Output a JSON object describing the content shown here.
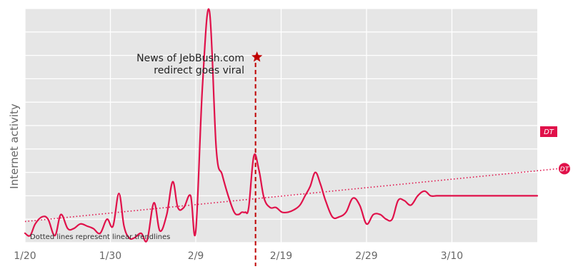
{
  "chart_data": {
    "type": "line",
    "ylabel": "Internet activity",
    "x_tick_labels": [
      "1/20",
      "1/30",
      "2/9",
      "2/19",
      "2/29",
      "3/10"
    ],
    "x_tick_days": [
      0,
      10,
      20,
      30,
      40,
      50
    ],
    "x_range_days": [
      0,
      60
    ],
    "y_range": [
      0,
      100
    ],
    "y_gridlines": [
      0,
      10,
      20,
      30,
      40,
      50,
      60,
      70,
      80,
      90,
      100
    ],
    "grid": true,
    "series": [
      {
        "name": "DT",
        "color": "#e0114a",
        "x_days": [
          0,
          0.6,
          1.2,
          2,
          2.7,
          3.5,
          4.2,
          5,
          5.7,
          6.5,
          7.3,
          8,
          8.8,
          9.6,
          10.3,
          11,
          11.6,
          12.2,
          12.8,
          13.6,
          14.3,
          15.1,
          15.8,
          16.6,
          17.3,
          17.9,
          18.6,
          19.4,
          20,
          20.8,
          21.6,
          22.4,
          23.1,
          23.8,
          24.5,
          25,
          25.4,
          25.8,
          26.2,
          26.8,
          27.4,
          28,
          28.7,
          29.4,
          30.1,
          30.8,
          31.5,
          32.2,
          32.8,
          33.4,
          34,
          34.6,
          35.2,
          36,
          36.8,
          37.6,
          38.4,
          39.2,
          40,
          40.8,
          41.6,
          42.3,
          43,
          43.7,
          44.4,
          45.2,
          46,
          46.8,
          47.5,
          48.2,
          48.9,
          49.6,
          50.3,
          51,
          51.7,
          52.4,
          53.1,
          53.8,
          54.5,
          55.2,
          55.9,
          56.6,
          57.3,
          58,
          58.7,
          59.4,
          60
        ],
        "values": [
          4,
          3,
          8,
          11,
          10,
          3,
          12,
          6,
          6,
          8,
          7,
          6,
          4,
          10,
          7,
          21,
          7,
          2,
          2,
          4,
          1,
          17,
          5,
          12,
          26,
          15,
          15,
          20,
          5,
          68,
          99,
          40,
          29,
          20,
          13,
          12,
          13,
          13,
          15,
          37,
          31,
          19,
          15,
          15,
          13,
          13,
          14,
          16,
          20,
          24,
          30,
          25,
          18,
          11,
          11,
          13,
          19,
          16,
          8,
          12,
          12,
          10,
          10,
          18,
          18,
          16,
          20,
          22,
          20,
          20,
          20,
          20,
          20,
          20,
          20,
          20,
          20,
          20,
          20,
          20,
          20,
          20,
          20,
          20,
          20,
          20,
          20
        ]
      }
    ],
    "trendline": {
      "name": "DT",
      "color": "#e0114a",
      "start": [
        0,
        9
      ],
      "end": [
        60,
        31
      ]
    },
    "annotation": {
      "day": 27,
      "line_1": "News of JebBush.com",
      "line_2": "redirect goes viral",
      "marker": "star-icon",
      "color": "#c00000"
    },
    "footnote": "Dotted lines represent linear trendlines"
  }
}
